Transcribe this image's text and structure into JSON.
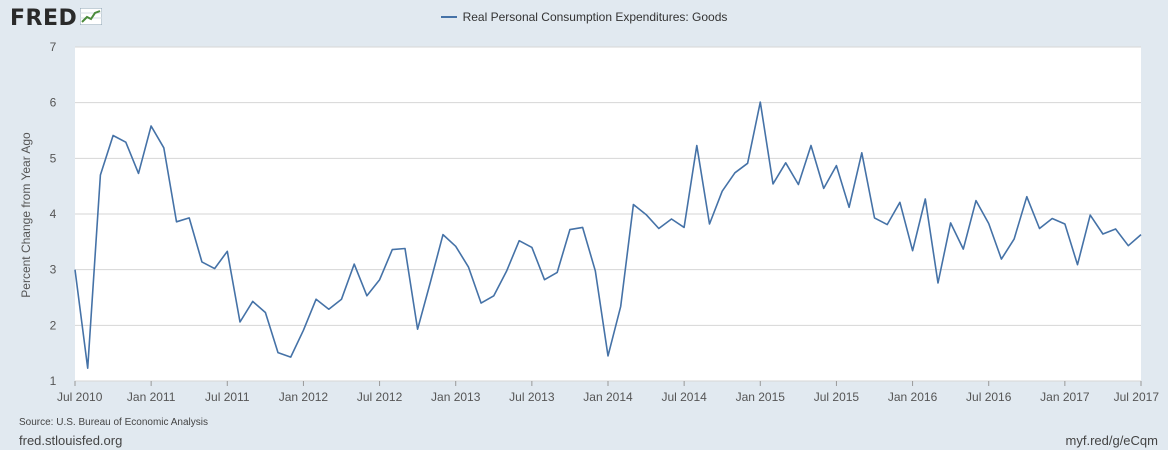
{
  "header": {
    "logo_text": "FRED",
    "logo_icon": "chart-line-icon"
  },
  "chart_data": {
    "type": "line",
    "title": "",
    "ylabel": "Percent Change from Year Ago",
    "xlabel": "",
    "ylim": [
      1,
      7
    ],
    "yticks": [
      "1",
      "2",
      "3",
      "4",
      "5",
      "6",
      "7"
    ],
    "xlim": [
      "2010-07",
      "2017-07"
    ],
    "xticks": [
      {
        "label": "Jul 2010",
        "date": "2010-07"
      },
      {
        "label": "Jan 2011",
        "date": "2011-01"
      },
      {
        "label": "Jul 2011",
        "date": "2011-07"
      },
      {
        "label": "Jan 2012",
        "date": "2012-01"
      },
      {
        "label": "Jul 2012",
        "date": "2012-07"
      },
      {
        "label": "Jan 2013",
        "date": "2013-01"
      },
      {
        "label": "Jul 2013",
        "date": "2013-07"
      },
      {
        "label": "Jan 2014",
        "date": "2014-01"
      },
      {
        "label": "Jul 2014",
        "date": "2014-07"
      },
      {
        "label": "Jan 2015",
        "date": "2015-01"
      },
      {
        "label": "Jul 2015",
        "date": "2015-07"
      },
      {
        "label": "Jan 2016",
        "date": "2016-01"
      },
      {
        "label": "Jul 2016",
        "date": "2016-07"
      },
      {
        "label": "Jan 2017",
        "date": "2017-01"
      },
      {
        "label": "Jul 2017",
        "date": "2017-07"
      }
    ],
    "grid": true,
    "legend_position": "top-center",
    "series": [
      {
        "name": "Real Personal Consumption Expenditures: Goods",
        "color": "#4572a7",
        "x": [
          "2010-07",
          "2010-08",
          "2010-09",
          "2010-10",
          "2010-11",
          "2010-12",
          "2011-01",
          "2011-02",
          "2011-03",
          "2011-04",
          "2011-05",
          "2011-06",
          "2011-07",
          "2011-08",
          "2011-09",
          "2011-10",
          "2011-11",
          "2011-12",
          "2012-01",
          "2012-02",
          "2012-03",
          "2012-04",
          "2012-05",
          "2012-06",
          "2012-07",
          "2012-08",
          "2012-09",
          "2012-10",
          "2012-11",
          "2012-12",
          "2013-01",
          "2013-02",
          "2013-03",
          "2013-04",
          "2013-05",
          "2013-06",
          "2013-07",
          "2013-08",
          "2013-09",
          "2013-10",
          "2013-11",
          "2013-12",
          "2014-01",
          "2014-02",
          "2014-03",
          "2014-04",
          "2014-05",
          "2014-06",
          "2014-07",
          "2014-08",
          "2014-09",
          "2014-10",
          "2014-11",
          "2014-12",
          "2015-01",
          "2015-02",
          "2015-03",
          "2015-04",
          "2015-05",
          "2015-06",
          "2015-07",
          "2015-08",
          "2015-09",
          "2015-10",
          "2015-11",
          "2015-12",
          "2016-01",
          "2016-02",
          "2016-03",
          "2016-04",
          "2016-05",
          "2016-06",
          "2016-07",
          "2016-08",
          "2016-09",
          "2016-10",
          "2016-11",
          "2016-12",
          "2017-01",
          "2017-02",
          "2017-03",
          "2017-04",
          "2017-05",
          "2017-06",
          "2017-07"
        ],
        "values": [
          3.0,
          1.23,
          4.7,
          5.41,
          5.29,
          4.73,
          5.58,
          5.19,
          3.86,
          3.93,
          3.14,
          3.02,
          3.33,
          2.06,
          2.43,
          2.23,
          1.51,
          1.43,
          1.91,
          2.47,
          2.29,
          2.47,
          3.1,
          2.53,
          2.82,
          3.36,
          3.38,
          1.93,
          2.77,
          3.63,
          3.42,
          3.05,
          2.4,
          2.53,
          2.97,
          3.52,
          3.4,
          2.82,
          2.95,
          3.72,
          3.76,
          2.98,
          1.45,
          2.34,
          4.17,
          3.99,
          3.74,
          3.91,
          3.76,
          5.23,
          3.82,
          4.41,
          4.74,
          4.91,
          6.01,
          4.54,
          4.92,
          4.53,
          5.23,
          4.46,
          4.87,
          4.12,
          5.1,
          3.93,
          3.81,
          4.21,
          3.34,
          4.27,
          2.76,
          3.84,
          3.37,
          4.24,
          3.83,
          3.19,
          3.55,
          4.31,
          3.74,
          3.92,
          3.82,
          3.09,
          3.98,
          3.64,
          3.73,
          3.43,
          3.63
        ]
      }
    ]
  },
  "footer": {
    "source": "Source: U.S. Bureau of Economic Analysis",
    "site": "fred.stlouisfed.org",
    "short_url": "myf.red/g/eCqm"
  }
}
